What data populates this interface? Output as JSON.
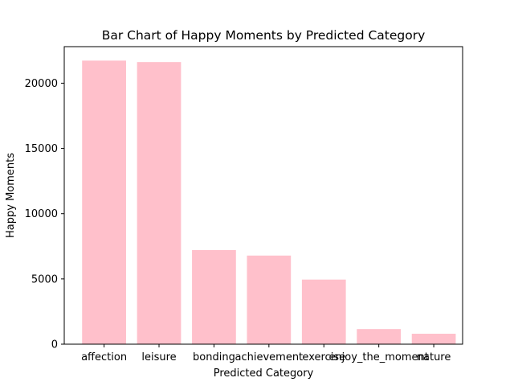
{
  "chart_data": {
    "type": "bar",
    "title": "Bar Chart of Happy Moments by Predicted Category",
    "xlabel": "Predicted Category",
    "ylabel": "Happy Moments",
    "categories": [
      "affection",
      "leisure",
      "bonding",
      "achievement",
      "exercise",
      "enjoy_the_moment",
      "nature"
    ],
    "values": [
      21730,
      21620,
      7210,
      6790,
      4950,
      1160,
      800
    ],
    "ylim": [
      0,
      22800
    ],
    "yticks": [
      0,
      5000,
      10000,
      15000,
      20000
    ],
    "ytick_labels": [
      "0",
      "5000",
      "10000",
      "15000",
      "20000"
    ],
    "grid": false,
    "legend": "none",
    "bar_color": "#ffc0cb"
  }
}
